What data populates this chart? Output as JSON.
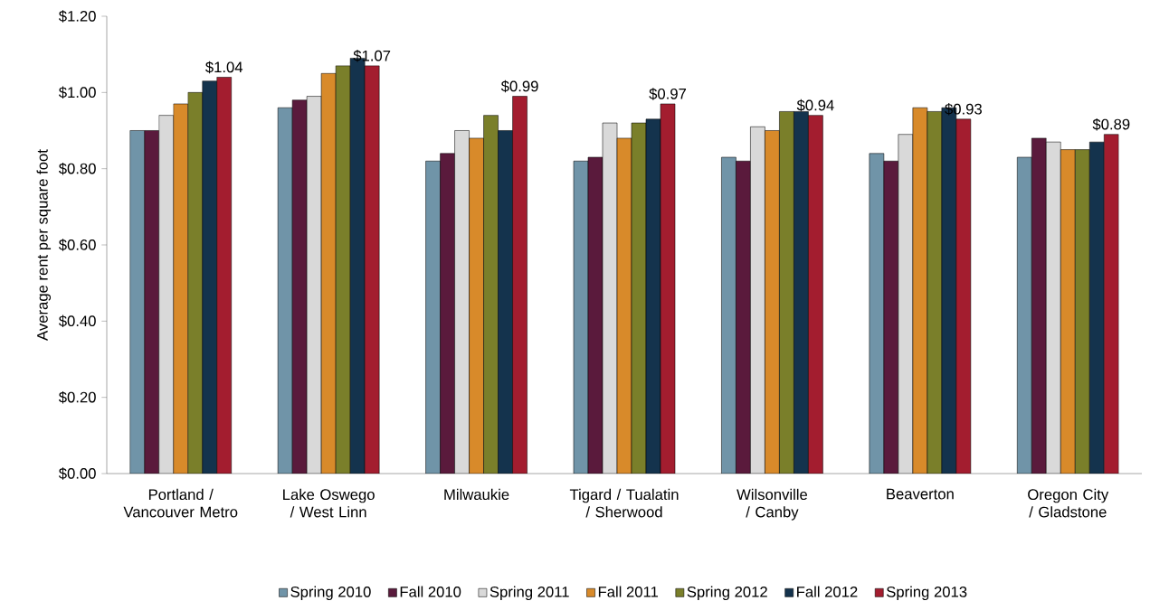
{
  "chart_data": {
    "type": "bar",
    "ylabel": "Average rent per square foot",
    "categories": [
      "Portland / Vancouver Metro",
      "Lake Oswego / West Linn",
      "Milwaukie",
      "Tigard / Tualatin / Sherwood",
      "Wilsonville / Canby",
      "Beaverton",
      "Oregon City / Gladstone"
    ],
    "series": [
      {
        "name": "Spring 2010",
        "color": "#7094a8",
        "values": [
          0.9,
          0.96,
          0.82,
          0.82,
          0.83,
          0.84,
          0.83
        ]
      },
      {
        "name": "Fall 2010",
        "color": "#5a1a3c",
        "values": [
          0.9,
          0.98,
          0.84,
          0.83,
          0.82,
          0.82,
          0.88
        ]
      },
      {
        "name": "Spring 2011",
        "color": "#d9d9d9",
        "values": [
          0.94,
          0.99,
          0.9,
          0.92,
          0.91,
          0.89,
          0.87
        ]
      },
      {
        "name": "Fall 2011",
        "color": "#d88a2a",
        "values": [
          0.97,
          1.05,
          0.88,
          0.88,
          0.9,
          0.96,
          0.85
        ]
      },
      {
        "name": "Spring 2012",
        "color": "#7a7f2a",
        "values": [
          1.0,
          1.07,
          0.94,
          0.92,
          0.95,
          0.95,
          0.85
        ]
      },
      {
        "name": "Fall 2012",
        "color": "#14334d",
        "values": [
          1.03,
          1.09,
          0.9,
          0.93,
          0.95,
          0.96,
          0.87
        ]
      },
      {
        "name": "Spring 2013",
        "color": "#a31d2f",
        "values": [
          1.04,
          1.07,
          0.99,
          0.97,
          0.94,
          0.93,
          0.89
        ],
        "value_labels": [
          "$1.04",
          "$1.07",
          "$0.99",
          "$0.97",
          "$0.94",
          "$0.93",
          "$0.89"
        ]
      }
    ],
    "ylim": [
      0,
      1.2
    ],
    "yticks": [
      {
        "value": 0,
        "label": "$0.00"
      },
      {
        "value": 0.2,
        "label": "$0.20"
      },
      {
        "value": 0.4,
        "label": "$0.40"
      },
      {
        "value": 0.6,
        "label": "$0.60"
      },
      {
        "value": 0.8,
        "label": "$0.80"
      },
      {
        "value": 1.0,
        "label": "$1.00"
      },
      {
        "value": 1.2,
        "label": "$1.20"
      }
    ],
    "grid": false,
    "legend": "bottom"
  }
}
